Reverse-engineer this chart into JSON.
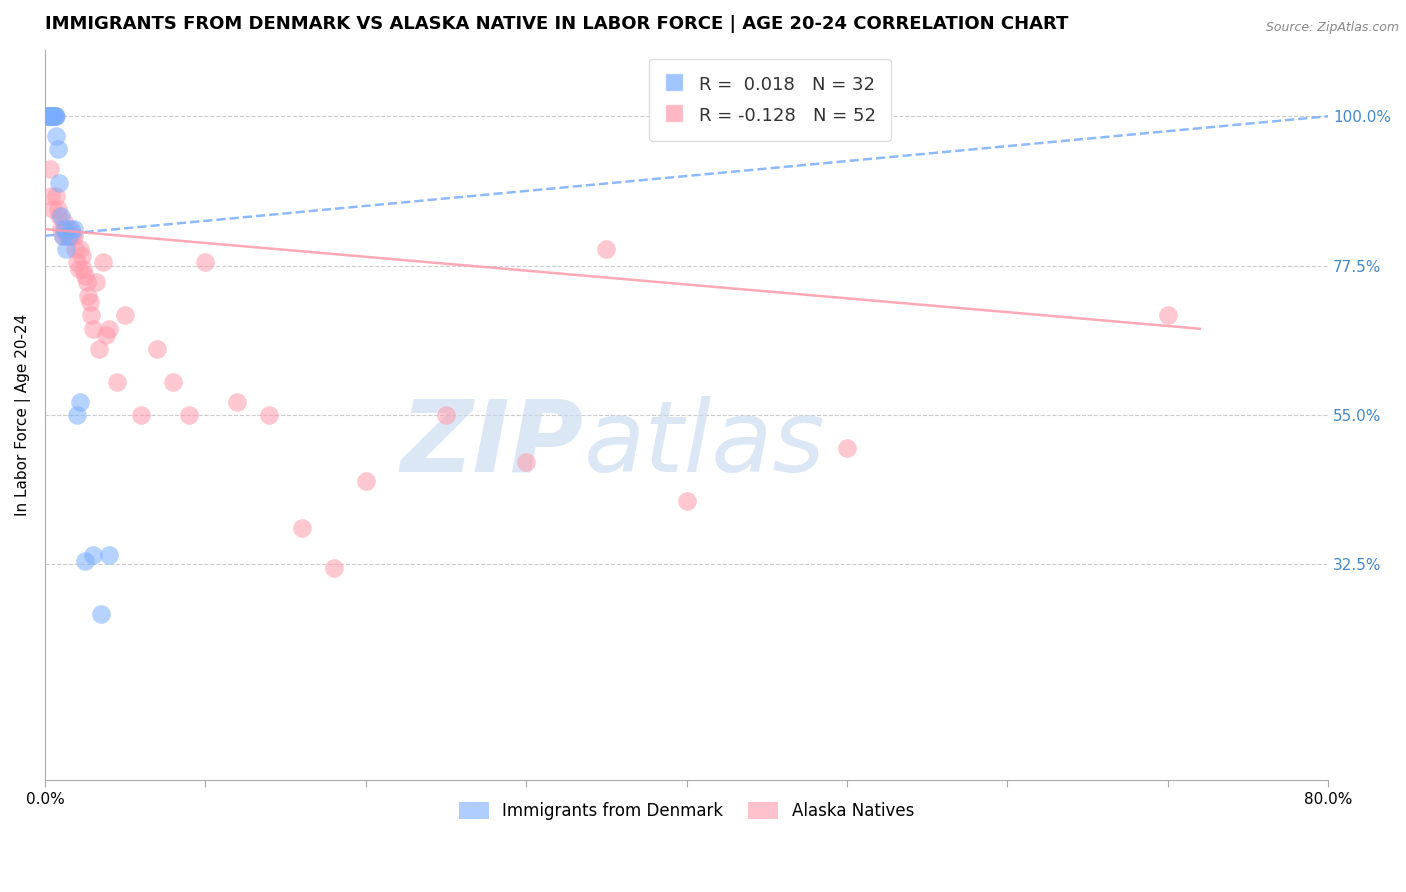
{
  "title": "IMMIGRANTS FROM DENMARK VS ALASKA NATIVE IN LABOR FORCE | AGE 20-24 CORRELATION CHART",
  "source": "Source: ZipAtlas.com",
  "ylabel": "In Labor Force | Age 20-24",
  "x_min": 0.0,
  "x_max": 0.8,
  "y_min": 0.0,
  "y_max": 1.1,
  "right_yticks": [
    0.325,
    0.55,
    0.775,
    1.0
  ],
  "right_yticklabels": [
    "32.5%",
    "55.0%",
    "77.5%",
    "100.0%"
  ],
  "legend_r_blue": "0.018",
  "legend_n_blue": "32",
  "legend_r_pink": "-0.128",
  "legend_n_pink": "52",
  "legend_label_blue": "Immigrants from Denmark",
  "legend_label_pink": "Alaska Natives",
  "blue_color": "#7aadff",
  "pink_color": "#ff99aa",
  "watermark_zip": "ZIP",
  "watermark_atlas": "atlas",
  "blue_scatter_x": [
    0.001,
    0.002,
    0.002,
    0.003,
    0.003,
    0.003,
    0.003,
    0.004,
    0.004,
    0.004,
    0.005,
    0.005,
    0.005,
    0.006,
    0.006,
    0.007,
    0.007,
    0.008,
    0.009,
    0.01,
    0.011,
    0.012,
    0.013,
    0.015,
    0.016,
    0.018,
    0.02,
    0.022,
    0.025,
    0.03,
    0.035,
    0.04
  ],
  "blue_scatter_y": [
    1.0,
    1.0,
    1.0,
    1.0,
    1.0,
    1.0,
    1.0,
    1.0,
    1.0,
    1.0,
    1.0,
    1.0,
    1.0,
    1.0,
    1.0,
    1.0,
    0.97,
    0.95,
    0.9,
    0.85,
    0.82,
    0.83,
    0.8,
    0.82,
    0.83,
    0.83,
    0.55,
    0.57,
    0.33,
    0.34,
    0.25,
    0.34
  ],
  "pink_scatter_x": [
    0.002,
    0.003,
    0.004,
    0.005,
    0.006,
    0.007,
    0.008,
    0.009,
    0.01,
    0.011,
    0.012,
    0.013,
    0.014,
    0.015,
    0.016,
    0.017,
    0.018,
    0.019,
    0.02,
    0.021,
    0.022,
    0.023,
    0.024,
    0.025,
    0.026,
    0.027,
    0.028,
    0.029,
    0.03,
    0.032,
    0.034,
    0.036,
    0.038,
    0.04,
    0.045,
    0.05,
    0.06,
    0.07,
    0.08,
    0.09,
    0.1,
    0.12,
    0.14,
    0.16,
    0.18,
    0.2,
    0.25,
    0.3,
    0.35,
    0.4,
    0.5,
    0.7
  ],
  "pink_scatter_y": [
    1.0,
    0.92,
    0.88,
    0.86,
    1.0,
    0.88,
    0.86,
    0.85,
    0.83,
    0.82,
    0.84,
    0.83,
    0.82,
    0.83,
    0.82,
    0.82,
    0.82,
    0.8,
    0.78,
    0.77,
    0.8,
    0.79,
    0.77,
    0.76,
    0.75,
    0.73,
    0.72,
    0.7,
    0.68,
    0.75,
    0.65,
    0.78,
    0.67,
    0.68,
    0.6,
    0.7,
    0.55,
    0.65,
    0.6,
    0.55,
    0.78,
    0.57,
    0.55,
    0.38,
    0.32,
    0.45,
    0.55,
    0.48,
    0.8,
    0.42,
    0.5,
    0.7
  ],
  "blue_trend_x0": 0.0,
  "blue_trend_x1": 0.8,
  "blue_trend_y0": 0.82,
  "blue_trend_y1": 1.0,
  "pink_trend_x0": 0.0,
  "pink_trend_x1": 0.72,
  "pink_trend_y0": 0.83,
  "pink_trend_y1": 0.68,
  "grid_color": "#cccccc",
  "background_color": "#ffffff",
  "title_fontsize": 13,
  "axis_label_fontsize": 11,
  "tick_fontsize": 11,
  "right_tick_color": "#4488cc"
}
